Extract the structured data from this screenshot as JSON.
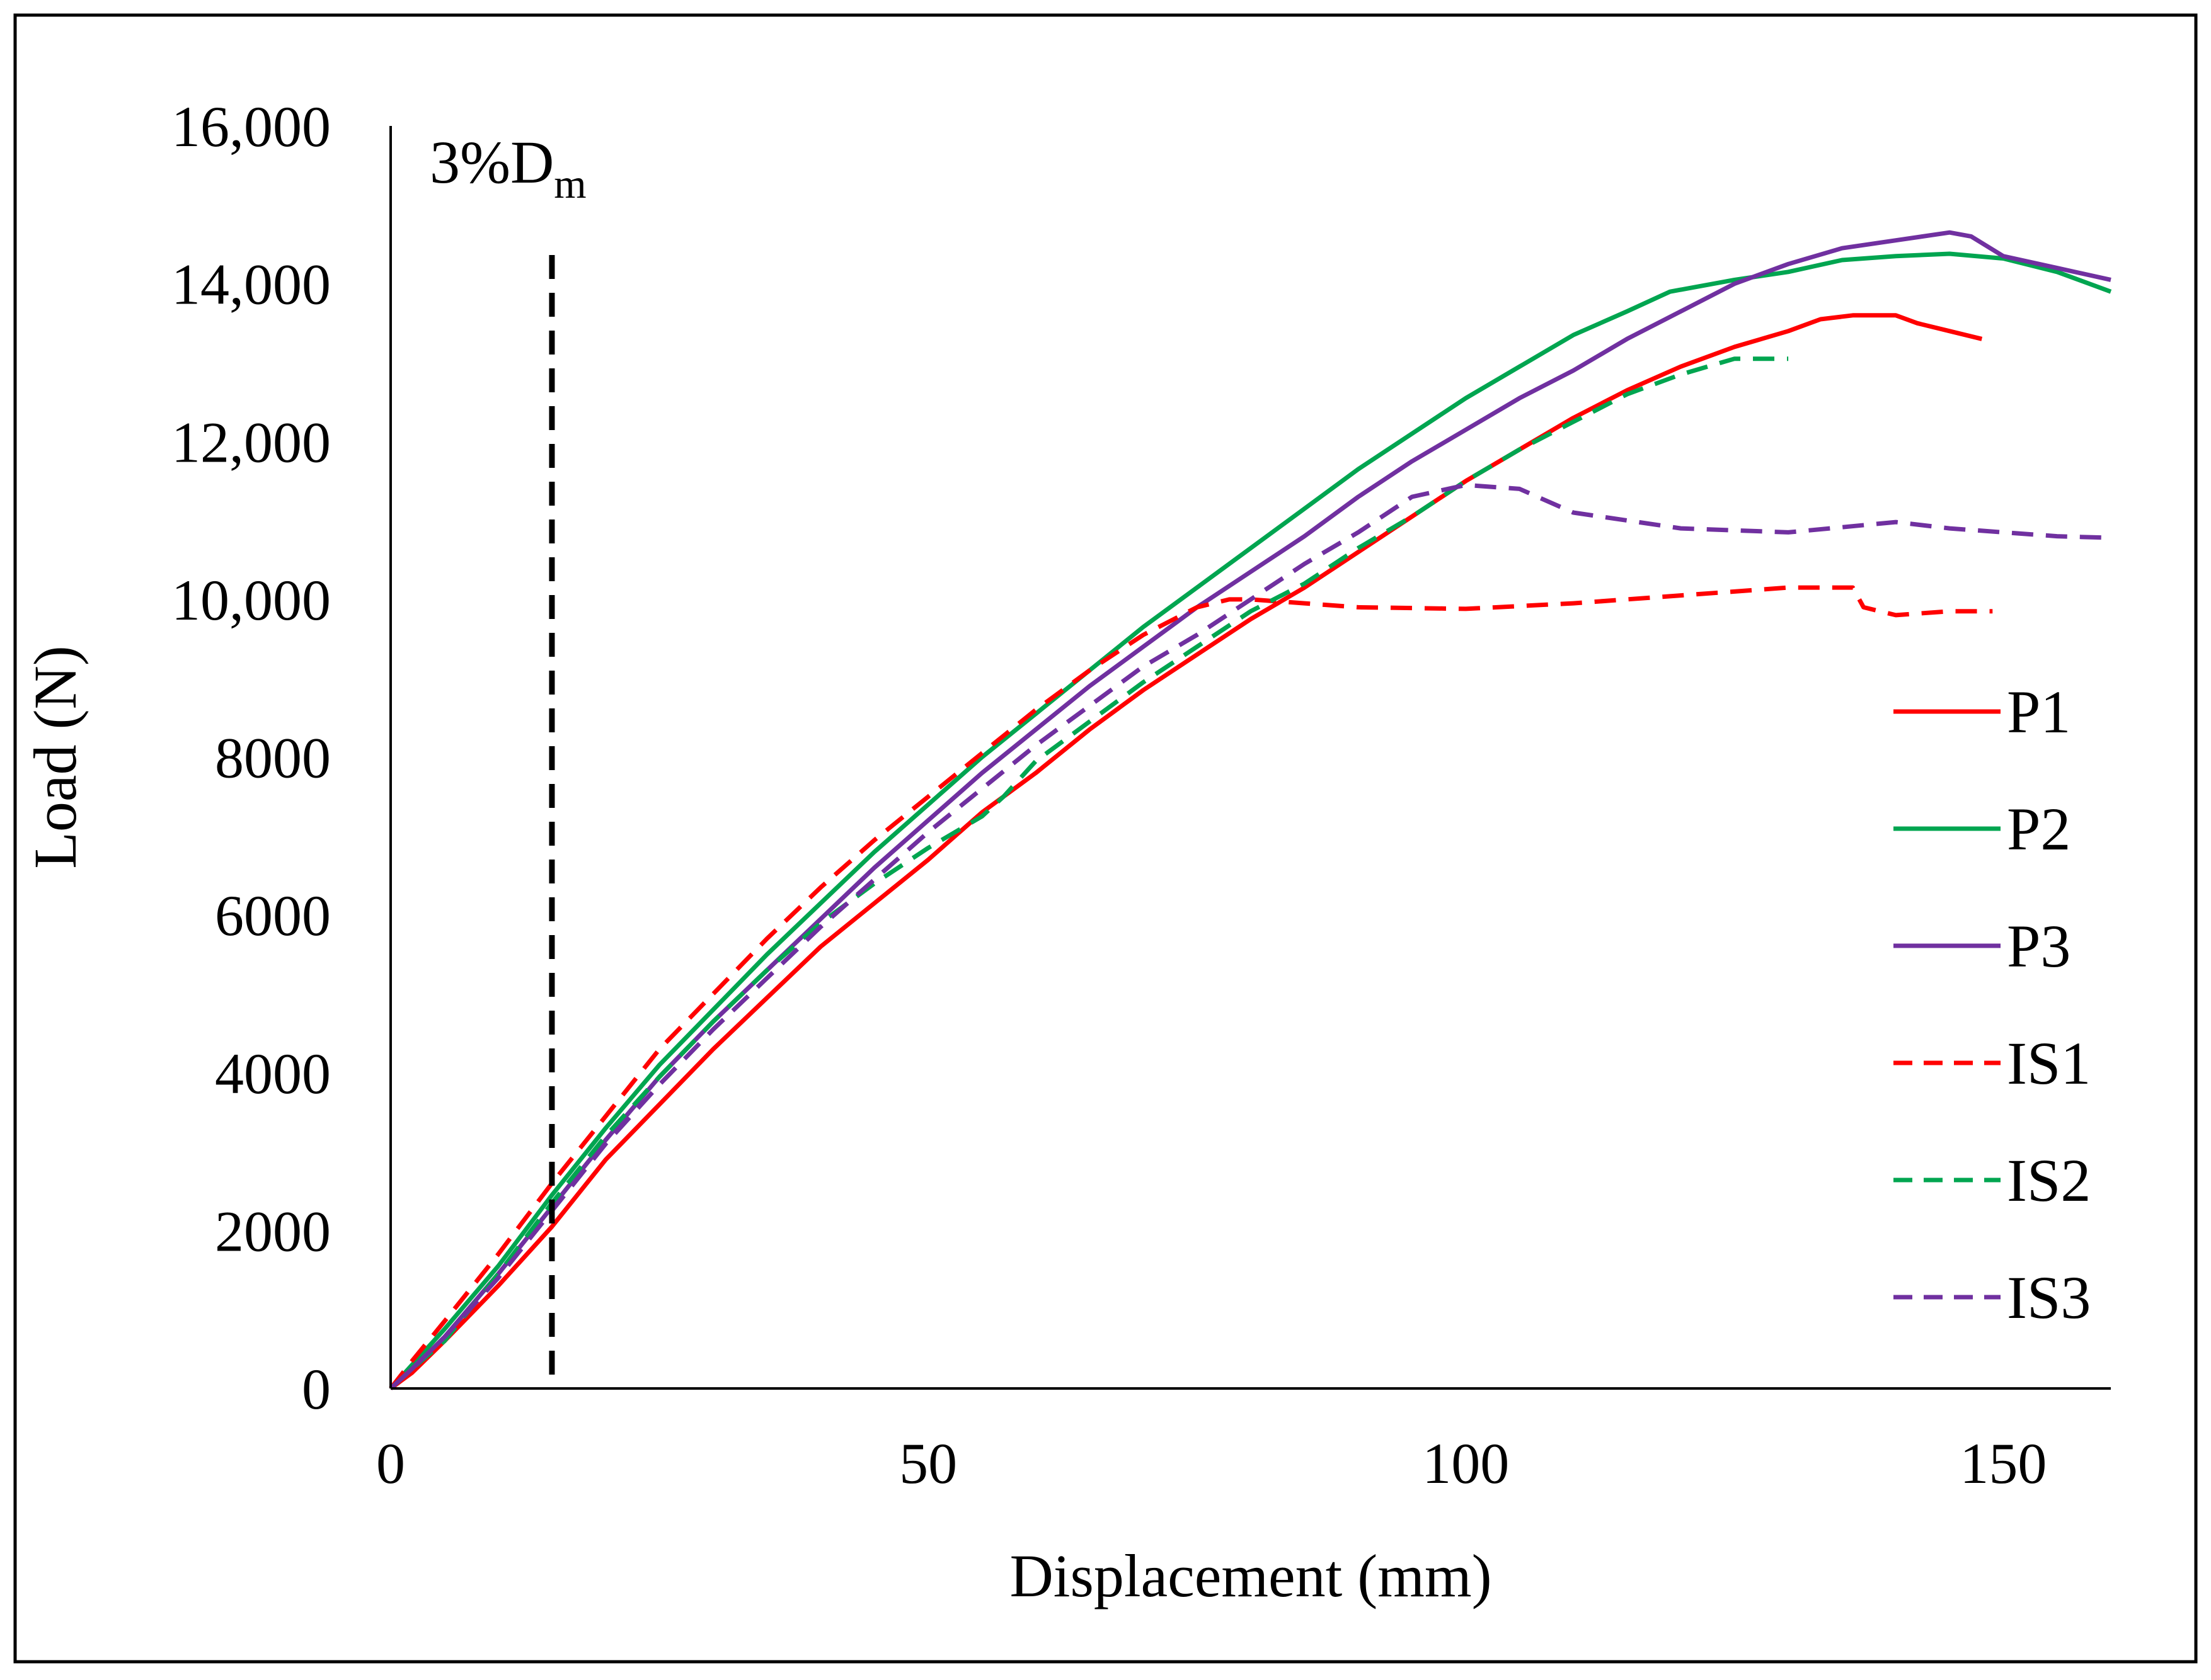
{
  "chart_data": {
    "type": "line",
    "xlabel": "Displacement (mm)",
    "ylabel": "Load (N)",
    "xlim": [
      0,
      160
    ],
    "ylim": [
      0,
      16000
    ],
    "x_ticks": [
      {
        "value": 0,
        "label": "0"
      },
      {
        "value": 50,
        "label": "50"
      },
      {
        "value": 100,
        "label": "100"
      },
      {
        "value": 150,
        "label": "150"
      }
    ],
    "y_ticks": [
      {
        "value": 0,
        "label": "0"
      },
      {
        "value": 2000,
        "label": "2000"
      },
      {
        "value": 4000,
        "label": "4000"
      },
      {
        "value": 6000,
        "label": "6000"
      },
      {
        "value": 8000,
        "label": "8000"
      },
      {
        "value": 10000,
        "label": "10,000"
      },
      {
        "value": 12000,
        "label": "12,000"
      },
      {
        "value": 14000,
        "label": "14,000"
      },
      {
        "value": 16000,
        "label": "16,000"
      }
    ],
    "grid": false,
    "legend_position": "right",
    "annotation": {
      "text_main": "3%D",
      "text_sub": "m",
      "x": 15,
      "color": "#000000"
    },
    "series": [
      {
        "name": "P1",
        "color": "#ff0000",
        "dash": "solid",
        "points": [
          [
            0,
            0
          ],
          [
            2,
            200
          ],
          [
            5,
            600
          ],
          [
            10,
            1300
          ],
          [
            15,
            2050
          ],
          [
            20,
            2900
          ],
          [
            25,
            3600
          ],
          [
            30,
            4300
          ],
          [
            35,
            4950
          ],
          [
            40,
            5600
          ],
          [
            45,
            6150
          ],
          [
            50,
            6700
          ],
          [
            55,
            7300
          ],
          [
            60,
            7800
          ],
          [
            65,
            8350
          ],
          [
            70,
            8850
          ],
          [
            75,
            9300
          ],
          [
            80,
            9750
          ],
          [
            85,
            10150
          ],
          [
            90,
            10600
          ],
          [
            95,
            11050
          ],
          [
            100,
            11500
          ],
          [
            105,
            11900
          ],
          [
            110,
            12300
          ],
          [
            115,
            12650
          ],
          [
            120,
            12950
          ],
          [
            125,
            13200
          ],
          [
            130,
            13400
          ],
          [
            133,
            13550
          ],
          [
            136,
            13600
          ],
          [
            140,
            13600
          ],
          [
            142,
            13500
          ],
          [
            145,
            13400
          ],
          [
            148,
            13300
          ]
        ]
      },
      {
        "name": "P2",
        "color": "#00a550",
        "dash": "solid",
        "points": [
          [
            0,
            0
          ],
          [
            2,
            300
          ],
          [
            5,
            750
          ],
          [
            10,
            1550
          ],
          [
            15,
            2450
          ],
          [
            20,
            3300
          ],
          [
            25,
            4100
          ],
          [
            30,
            4800
          ],
          [
            35,
            5500
          ],
          [
            40,
            6150
          ],
          [
            45,
            6800
          ],
          [
            50,
            7400
          ],
          [
            55,
            8000
          ],
          [
            60,
            8550
          ],
          [
            65,
            9100
          ],
          [
            70,
            9650
          ],
          [
            75,
            10150
          ],
          [
            80,
            10650
          ],
          [
            85,
            11150
          ],
          [
            90,
            11650
          ],
          [
            95,
            12100
          ],
          [
            100,
            12550
          ],
          [
            105,
            12950
          ],
          [
            110,
            13350
          ],
          [
            115,
            13650
          ],
          [
            119,
            13900
          ],
          [
            125,
            14050
          ],
          [
            130,
            14150
          ],
          [
            135,
            14300
          ],
          [
            140,
            14350
          ],
          [
            145,
            14380
          ],
          [
            150,
            14320
          ],
          [
            155,
            14150
          ],
          [
            160,
            13900
          ]
        ]
      },
      {
        "name": "P3",
        "color": "#7030a0",
        "dash": "solid",
        "points": [
          [
            0,
            0
          ],
          [
            2,
            250
          ],
          [
            5,
            650
          ],
          [
            10,
            1450
          ],
          [
            15,
            2300
          ],
          [
            20,
            3150
          ],
          [
            25,
            3950
          ],
          [
            30,
            4650
          ],
          [
            35,
            5300
          ],
          [
            40,
            5950
          ],
          [
            45,
            6600
          ],
          [
            50,
            7200
          ],
          [
            55,
            7800
          ],
          [
            60,
            8350
          ],
          [
            65,
            8900
          ],
          [
            70,
            9400
          ],
          [
            75,
            9900
          ],
          [
            80,
            10350
          ],
          [
            85,
            10800
          ],
          [
            90,
            11300
          ],
          [
            95,
            11750
          ],
          [
            100,
            12150
          ],
          [
            105,
            12550
          ],
          [
            110,
            12900
          ],
          [
            115,
            13300
          ],
          [
            120,
            13650
          ],
          [
            125,
            14000
          ],
          [
            130,
            14250
          ],
          [
            135,
            14450
          ],
          [
            140,
            14550
          ],
          [
            145,
            14650
          ],
          [
            147,
            14600
          ],
          [
            150,
            14350
          ],
          [
            155,
            14200
          ],
          [
            160,
            14050
          ]
        ]
      },
      {
        "name": "IS1",
        "color": "#ff0000",
        "dash": "dashed",
        "points": [
          [
            0,
            0
          ],
          [
            2,
            350
          ],
          [
            5,
            850
          ],
          [
            10,
            1700
          ],
          [
            15,
            2600
          ],
          [
            20,
            3450
          ],
          [
            25,
            4300
          ],
          [
            30,
            5000
          ],
          [
            35,
            5700
          ],
          [
            40,
            6350
          ],
          [
            45,
            6950
          ],
          [
            50,
            7500
          ],
          [
            55,
            8050
          ],
          [
            60,
            8600
          ],
          [
            65,
            9100
          ],
          [
            70,
            9550
          ],
          [
            75,
            9900
          ],
          [
            78,
            10000
          ],
          [
            80,
            10000
          ],
          [
            85,
            9950
          ],
          [
            90,
            9900
          ],
          [
            100,
            9880
          ],
          [
            110,
            9950
          ],
          [
            120,
            10050
          ],
          [
            130,
            10150
          ],
          [
            136,
            10150
          ],
          [
            137,
            9900
          ],
          [
            140,
            9800
          ],
          [
            145,
            9850
          ],
          [
            149,
            9850
          ]
        ]
      },
      {
        "name": "IS2",
        "color": "#00a550",
        "dash": "dashed",
        "points": [
          [
            0,
            0
          ],
          [
            2,
            250
          ],
          [
            5,
            600
          ],
          [
            10,
            1450
          ],
          [
            15,
            2350
          ],
          [
            20,
            3200
          ],
          [
            25,
            3950
          ],
          [
            30,
            4650
          ],
          [
            35,
            5300
          ],
          [
            40,
            5900
          ],
          [
            45,
            6400
          ],
          [
            50,
            6850
          ],
          [
            55,
            7250
          ],
          [
            57,
            7500
          ],
          [
            60,
            7950
          ],
          [
            65,
            8450
          ],
          [
            70,
            8950
          ],
          [
            75,
            9400
          ],
          [
            80,
            9850
          ],
          [
            85,
            10200
          ],
          [
            90,
            10650
          ],
          [
            95,
            11050
          ],
          [
            100,
            11500
          ],
          [
            105,
            11900
          ],
          [
            110,
            12250
          ],
          [
            115,
            12600
          ],
          [
            120,
            12850
          ],
          [
            125,
            13050
          ],
          [
            130,
            13050
          ]
        ]
      },
      {
        "name": "IS3",
        "color": "#7030a0",
        "dash": "dashed",
        "points": [
          [
            0,
            0
          ],
          [
            2,
            250
          ],
          [
            5,
            650
          ],
          [
            10,
            1400
          ],
          [
            15,
            2250
          ],
          [
            20,
            3100
          ],
          [
            25,
            3850
          ],
          [
            30,
            4550
          ],
          [
            35,
            5200
          ],
          [
            40,
            5850
          ],
          [
            45,
            6450
          ],
          [
            50,
            7050
          ],
          [
            55,
            7600
          ],
          [
            60,
            8150
          ],
          [
            65,
            8650
          ],
          [
            70,
            9150
          ],
          [
            75,
            9550
          ],
          [
            80,
            10000
          ],
          [
            85,
            10450
          ],
          [
            90,
            10850
          ],
          [
            95,
            11300
          ],
          [
            100,
            11450
          ],
          [
            105,
            11400
          ],
          [
            110,
            11100
          ],
          [
            120,
            10900
          ],
          [
            130,
            10850
          ],
          [
            140,
            10980
          ],
          [
            145,
            10900
          ],
          [
            150,
            10850
          ],
          [
            155,
            10800
          ],
          [
            160,
            10780
          ]
        ]
      }
    ]
  }
}
